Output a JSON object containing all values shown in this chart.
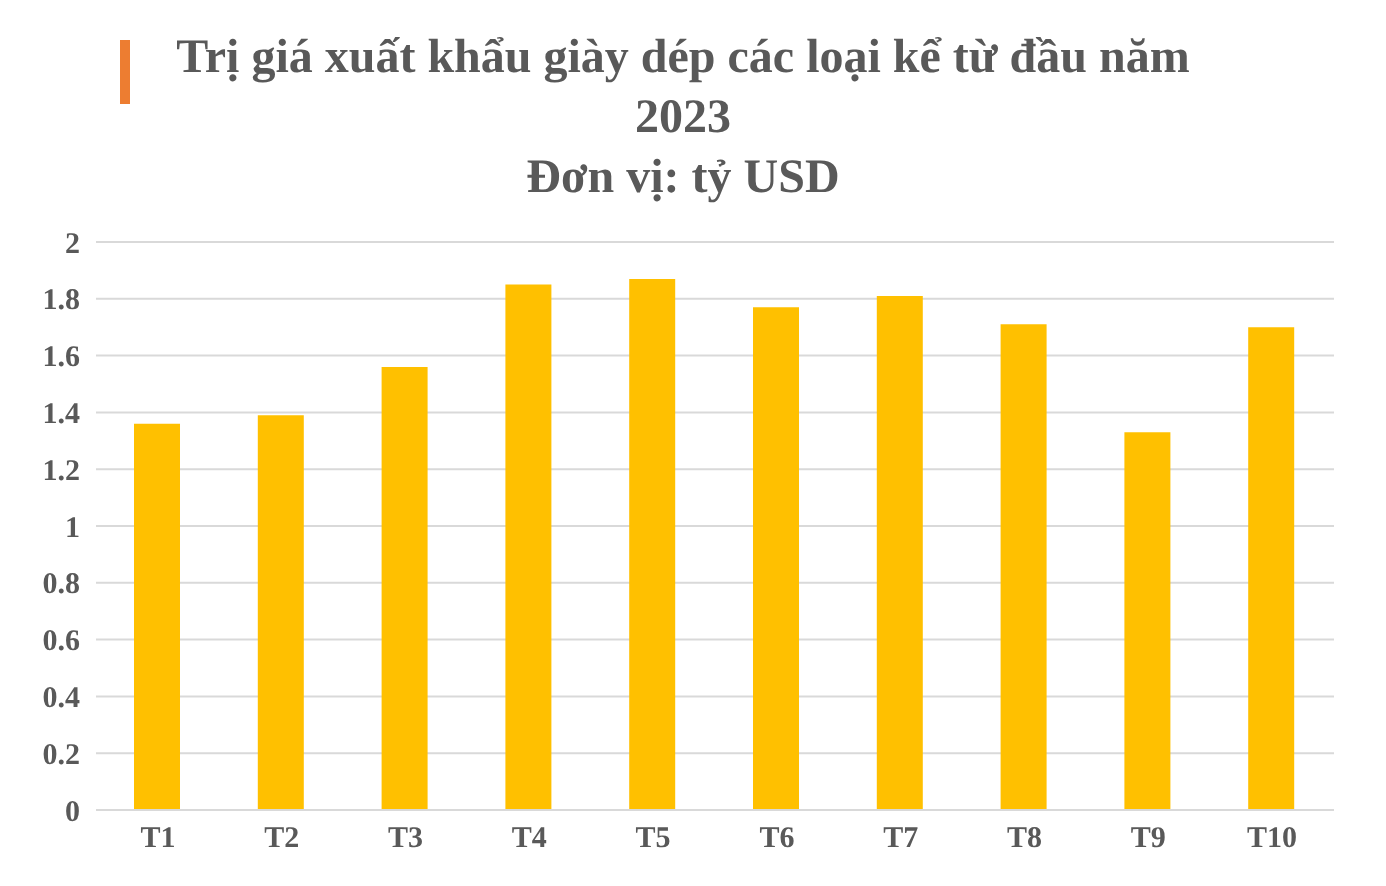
{
  "chart_data": {
    "type": "bar",
    "title": "Trị giá xuất khẩu giày dép các loại kể từ đầu năm 2023",
    "subtitle": "Đơn vị: tỷ USD",
    "categories": [
      "T1",
      "T2",
      "T3",
      "T4",
      "T5",
      "T6",
      "T7",
      "T8",
      "T9",
      "T10"
    ],
    "series": [
      {
        "color": "#ffc000",
        "values": [
          1.36,
          1.39,
          1.56,
          1.85,
          1.87,
          1.77,
          1.81,
          1.71,
          1.33,
          1.7
        ]
      }
    ],
    "ylim": [
      0,
      2
    ],
    "yticks": [
      0,
      0.2,
      0.4,
      0.6,
      0.8,
      1,
      1.2,
      1.4,
      1.6,
      1.8,
      2
    ],
    "grid": "y",
    "legend": false
  }
}
